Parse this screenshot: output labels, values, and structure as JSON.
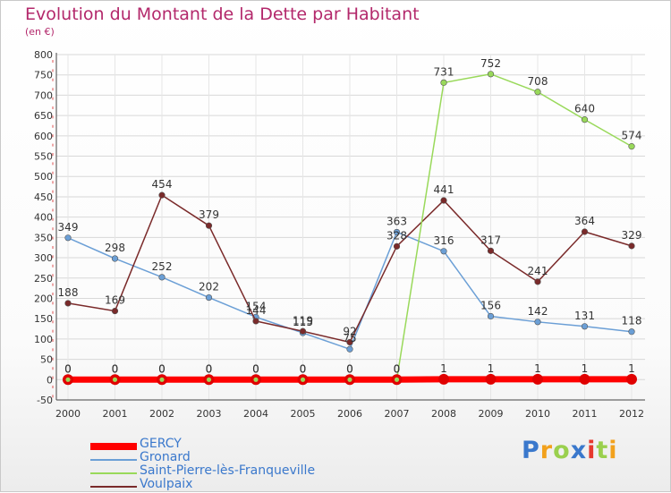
{
  "header": {
    "title": "Evolution du Montant de la Dette par Habitant",
    "subtitle": "(en €)"
  },
  "chart_data": {
    "type": "line",
    "x": [
      2000,
      2001,
      2002,
      2003,
      2004,
      2005,
      2006,
      2007,
      2008,
      2009,
      2010,
      2011,
      2012
    ],
    "ylim": [
      -50,
      800
    ],
    "yticks": [
      -50,
      0,
      50,
      100,
      150,
      200,
      250,
      300,
      350,
      400,
      450,
      500,
      550,
      600,
      650,
      700,
      750,
      800
    ],
    "grid": true,
    "legend_position": "bottom-left",
    "series": [
      {
        "name": "GERCY",
        "color": "#ff0000",
        "values": [
          0,
          0,
          0,
          0,
          0,
          0,
          0,
          0,
          1,
          1,
          1,
          1,
          1
        ],
        "labels": [
          "0",
          "0",
          "0",
          "0",
          "0",
          "0",
          "0",
          "0",
          "1",
          "1",
          "1",
          "1",
          "1"
        ]
      },
      {
        "name": "Gronard",
        "color": "#6b9fd6",
        "values": [
          349,
          298,
          252,
          202,
          154,
          115,
          75,
          363,
          316,
          156,
          142,
          131,
          118
        ],
        "labels": [
          "349",
          "298",
          "252",
          "202",
          "154",
          "115",
          "75",
          "363",
          "316",
          "156",
          "142",
          "131",
          "118"
        ]
      },
      {
        "name": "Saint-Pierre-lès-Franqueville",
        "color": "#99d95a",
        "values": [
          0,
          0,
          0,
          0,
          0,
          0,
          0,
          0,
          731,
          752,
          708,
          640,
          574
        ],
        "labels": [
          "0",
          "0",
          "0",
          "0",
          "0",
          "0",
          "0",
          "0",
          "731",
          "752",
          "708",
          "640",
          "574"
        ]
      },
      {
        "name": "Voulpaix",
        "color": "#7a2a2a",
        "values": [
          188,
          169,
          454,
          379,
          144,
          119,
          92,
          328,
          441,
          317,
          241,
          364,
          329
        ],
        "labels": [
          "188",
          "169",
          "454",
          "379",
          "144",
          "119",
          "92",
          "328",
          "441",
          "317",
          "241",
          "364",
          "329"
        ]
      }
    ]
  },
  "logo": {
    "text": "Proxiti",
    "colors": [
      "#3a78cc",
      "#f2a11c",
      "#9ad04e",
      "#3a78cc",
      "#e63a2e",
      "#9ad04e",
      "#f2a11c"
    ]
  }
}
